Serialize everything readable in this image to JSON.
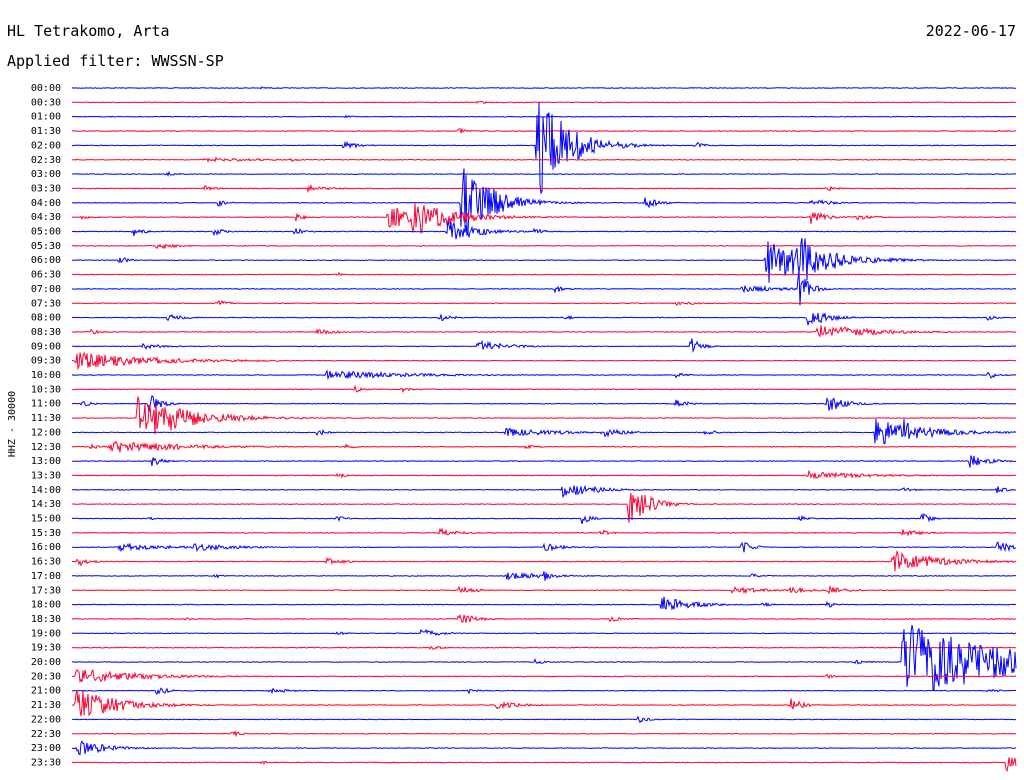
{
  "header": {
    "station": "HL Tetrakomo, Arta",
    "filter": "Applied filter: WWSSN-SP",
    "date": "2022-06-17"
  },
  "chart_data": {
    "type": "line",
    "title": "HL Tetrakomo, Arta",
    "subtitle": "Applied filter: WWSSN-SP",
    "date": "2022-06-17",
    "ylabel": "HHZ - 30000",
    "trace_colors": [
      "#0000ff",
      "#ff0033"
    ],
    "rows": [
      {
        "time": "00:00",
        "events": [
          {
            "at": 0.2,
            "amp": 0.2,
            "dur": 0.01
          }
        ]
      },
      {
        "time": "00:30",
        "events": [
          {
            "at": 0.43,
            "amp": 0.3,
            "dur": 0.01
          }
        ]
      },
      {
        "time": "01:00",
        "events": [
          {
            "at": 0.29,
            "amp": 0.2,
            "dur": 0.01
          }
        ]
      },
      {
        "time": "01:30",
        "events": [
          {
            "at": 0.41,
            "amp": 0.4,
            "dur": 0.01
          }
        ]
      },
      {
        "time": "02:00",
        "events": [
          {
            "at": 0.288,
            "amp": 0.6,
            "dur": 0.015
          },
          {
            "at": 0.493,
            "amp": 8.0,
            "dur": 0.03
          },
          {
            "at": 0.66,
            "amp": 0.6,
            "dur": 0.01
          }
        ]
      },
      {
        "time": "02:30",
        "events": [
          {
            "at": 0.14,
            "amp": 0.4,
            "dur": 0.05
          },
          {
            "at": 0.23,
            "amp": 0.3,
            "dur": 0.01
          }
        ]
      },
      {
        "time": "03:00",
        "events": [
          {
            "at": 0.1,
            "amp": 0.4,
            "dur": 0.01
          }
        ]
      },
      {
        "time": "03:30",
        "events": [
          {
            "at": 0.14,
            "amp": 0.5,
            "dur": 0.01
          },
          {
            "at": 0.25,
            "amp": 0.5,
            "dur": 0.02
          },
          {
            "at": 0.8,
            "amp": 0.4,
            "dur": 0.01
          }
        ]
      },
      {
        "time": "04:00",
        "events": [
          {
            "at": 0.155,
            "amp": 0.5,
            "dur": 0.01
          },
          {
            "at": 0.413,
            "amp": 6.0,
            "dur": 0.03
          },
          {
            "at": 0.446,
            "amp": 1.8,
            "dur": 0.02
          },
          {
            "at": 0.607,
            "amp": 0.8,
            "dur": 0.015
          },
          {
            "at": 0.783,
            "amp": 0.6,
            "dur": 0.02
          }
        ]
      },
      {
        "time": "04:30",
        "events": [
          {
            "at": 0.01,
            "amp": 0.3,
            "dur": 0.01
          },
          {
            "at": 0.237,
            "amp": 0.6,
            "dur": 0.01
          },
          {
            "at": 0.335,
            "amp": 1.5,
            "dur": 0.06
          },
          {
            "at": 0.36,
            "amp": 2.8,
            "dur": 0.04
          },
          {
            "at": 0.783,
            "amp": 1.0,
            "dur": 0.015
          },
          {
            "at": 0.83,
            "amp": 0.4,
            "dur": 0.02
          }
        ]
      },
      {
        "time": "05:00",
        "events": [
          {
            "at": 0.065,
            "amp": 0.7,
            "dur": 0.01
          },
          {
            "at": 0.15,
            "amp": 0.6,
            "dur": 0.01
          },
          {
            "at": 0.236,
            "amp": 0.6,
            "dur": 0.01
          },
          {
            "at": 0.398,
            "amp": 1.6,
            "dur": 0.03
          },
          {
            "at": 0.49,
            "amp": 0.5,
            "dur": 0.01
          }
        ]
      },
      {
        "time": "05:30",
        "events": [
          {
            "at": 0.09,
            "amp": 0.5,
            "dur": 0.02
          }
        ]
      },
      {
        "time": "06:00",
        "events": [
          {
            "at": 0.05,
            "amp": 0.6,
            "dur": 0.01
          },
          {
            "at": 0.736,
            "amp": 3.5,
            "dur": 0.05
          },
          {
            "at": 0.771,
            "amp": 4.0,
            "dur": 0.03
          },
          {
            "at": 0.866,
            "amp": 0.5,
            "dur": 0.01
          }
        ]
      },
      {
        "time": "06:30",
        "events": [
          {
            "at": 0.28,
            "amp": 0.3,
            "dur": 0.01
          }
        ]
      },
      {
        "time": "07:00",
        "events": [
          {
            "at": 0.512,
            "amp": 0.6,
            "dur": 0.01
          },
          {
            "at": 0.71,
            "amp": 0.6,
            "dur": 0.04
          },
          {
            "at": 0.77,
            "amp": 3.0,
            "dur": 0.01
          }
        ]
      },
      {
        "time": "07:30",
        "events": [
          {
            "at": 0.154,
            "amp": 0.6,
            "dur": 0.01
          },
          {
            "at": 0.64,
            "amp": 0.4,
            "dur": 0.02
          }
        ]
      },
      {
        "time": "08:00",
        "events": [
          {
            "at": 0.1,
            "amp": 0.5,
            "dur": 0.02
          },
          {
            "at": 0.39,
            "amp": 0.5,
            "dur": 0.015
          },
          {
            "at": 0.52,
            "amp": 0.4,
            "dur": 0.01
          },
          {
            "at": 0.78,
            "amp": 1.5,
            "dur": 0.02
          },
          {
            "at": 0.97,
            "amp": 0.4,
            "dur": 0.01
          }
        ]
      },
      {
        "time": "08:30",
        "events": [
          {
            "at": 0.02,
            "amp": 0.4,
            "dur": 0.01
          },
          {
            "at": 0.26,
            "amp": 0.7,
            "dur": 0.015
          },
          {
            "at": 0.79,
            "amp": 1.2,
            "dur": 0.05
          }
        ]
      },
      {
        "time": "09:00",
        "events": [
          {
            "at": 0.075,
            "amp": 0.5,
            "dur": 0.02
          },
          {
            "at": 0.43,
            "amp": 0.8,
            "dur": 0.03
          },
          {
            "at": 0.655,
            "amp": 1.4,
            "dur": 0.01
          }
        ]
      },
      {
        "time": "09:30",
        "events": [
          {
            "at": 0.005,
            "amp": 1.2,
            "dur": 0.08
          },
          {
            "at": 0.08,
            "amp": 0.3,
            "dur": 0.01
          }
        ]
      },
      {
        "time": "10:00",
        "events": [
          {
            "at": 0.27,
            "amp": 0.7,
            "dur": 0.08
          },
          {
            "at": 0.64,
            "amp": 0.4,
            "dur": 0.01
          },
          {
            "at": 0.97,
            "amp": 0.6,
            "dur": 0.01
          }
        ]
      },
      {
        "time": "10:30",
        "events": [
          {
            "at": 0.3,
            "amp": 0.6,
            "dur": 0.01
          },
          {
            "at": 0.35,
            "amp": 0.4,
            "dur": 0.01
          }
        ]
      },
      {
        "time": "11:00",
        "events": [
          {
            "at": 0.01,
            "amp": 0.5,
            "dur": 0.01
          },
          {
            "at": 0.082,
            "amp": 2.0,
            "dur": 0.01
          },
          {
            "at": 0.64,
            "amp": 0.8,
            "dur": 0.01
          },
          {
            "at": 0.8,
            "amp": 1.2,
            "dur": 0.02
          }
        ]
      },
      {
        "time": "11:30",
        "events": [
          {
            "at": 0.07,
            "amp": 3.5,
            "dur": 0.05
          }
        ]
      },
      {
        "time": "12:00",
        "events": [
          {
            "at": 0.26,
            "amp": 0.5,
            "dur": 0.01
          },
          {
            "at": 0.46,
            "amp": 0.6,
            "dur": 0.06
          },
          {
            "at": 0.56,
            "amp": 0.8,
            "dur": 0.02
          },
          {
            "at": 0.67,
            "amp": 0.6,
            "dur": 0.01
          },
          {
            "at": 0.85,
            "amp": 2.0,
            "dur": 0.05
          },
          {
            "at": 0.88,
            "amp": 3.0,
            "dur": 0.01
          }
        ]
      },
      {
        "time": "12:30",
        "events": [
          {
            "at": 0.02,
            "amp": 0.5,
            "dur": 0.01
          },
          {
            "at": 0.04,
            "amp": 1.0,
            "dur": 0.07
          },
          {
            "at": 0.29,
            "amp": 0.4,
            "dur": 0.01
          },
          {
            "at": 0.48,
            "amp": 0.4,
            "dur": 0.01
          }
        ]
      },
      {
        "time": "13:00",
        "events": [
          {
            "at": 0.085,
            "amp": 0.8,
            "dur": 0.01
          },
          {
            "at": 0.95,
            "amp": 1.0,
            "dur": 0.02
          }
        ]
      },
      {
        "time": "13:30",
        "events": [
          {
            "at": 0.28,
            "amp": 0.5,
            "dur": 0.01
          },
          {
            "at": 0.78,
            "amp": 0.6,
            "dur": 0.06
          }
        ]
      },
      {
        "time": "14:00",
        "events": [
          {
            "at": 0.52,
            "amp": 1.2,
            "dur": 0.03
          },
          {
            "at": 0.88,
            "amp": 0.5,
            "dur": 0.01
          },
          {
            "at": 0.98,
            "amp": 0.5,
            "dur": 0.01
          }
        ]
      },
      {
        "time": "14:30",
        "events": [
          {
            "at": 0.59,
            "amp": 3.0,
            "dur": 0.02
          }
        ]
      },
      {
        "time": "15:00",
        "events": [
          {
            "at": 0.08,
            "amp": 0.3,
            "dur": 0.01
          },
          {
            "at": 0.28,
            "amp": 0.4,
            "dur": 0.01
          },
          {
            "at": 0.54,
            "amp": 0.8,
            "dur": 0.01
          },
          {
            "at": 0.77,
            "amp": 0.4,
            "dur": 0.01
          },
          {
            "at": 0.9,
            "amp": 0.8,
            "dur": 0.01
          }
        ]
      },
      {
        "time": "15:30",
        "events": [
          {
            "at": 0.39,
            "amp": 0.6,
            "dur": 0.02
          },
          {
            "at": 0.56,
            "amp": 0.5,
            "dur": 0.01
          },
          {
            "at": 0.88,
            "amp": 0.5,
            "dur": 0.02
          }
        ]
      },
      {
        "time": "16:00",
        "events": [
          {
            "at": 0.05,
            "amp": 0.5,
            "dur": 0.06
          },
          {
            "at": 0.13,
            "amp": 0.6,
            "dur": 0.04
          },
          {
            "at": 0.5,
            "amp": 0.6,
            "dur": 0.02
          },
          {
            "at": 0.71,
            "amp": 1.0,
            "dur": 0.01
          },
          {
            "at": 0.98,
            "amp": 0.8,
            "dur": 0.02
          }
        ]
      },
      {
        "time": "16:30",
        "events": [
          {
            "at": 0.005,
            "amp": 1.0,
            "dur": 0.01
          },
          {
            "at": 0.27,
            "amp": 0.5,
            "dur": 0.02
          },
          {
            "at": 0.87,
            "amp": 1.5,
            "dur": 0.05
          }
        ]
      },
      {
        "time": "17:00",
        "events": [
          {
            "at": 0.15,
            "amp": 0.4,
            "dur": 0.01
          },
          {
            "at": 0.46,
            "amp": 0.6,
            "dur": 0.04
          },
          {
            "at": 0.5,
            "amp": 0.8,
            "dur": 0.01
          },
          {
            "at": 0.72,
            "amp": 0.4,
            "dur": 0.01
          }
        ]
      },
      {
        "time": "17:30",
        "events": [
          {
            "at": 0.41,
            "amp": 0.5,
            "dur": 0.02
          },
          {
            "at": 0.7,
            "amp": 0.6,
            "dur": 0.03
          },
          {
            "at": 0.76,
            "amp": 0.6,
            "dur": 0.02
          },
          {
            "at": 0.8,
            "amp": 0.6,
            "dur": 0.02
          }
        ]
      },
      {
        "time": "18:00",
        "events": [
          {
            "at": 0.625,
            "amp": 1.2,
            "dur": 0.03
          },
          {
            "at": 0.73,
            "amp": 0.4,
            "dur": 0.01
          },
          {
            "at": 0.8,
            "amp": 0.5,
            "dur": 0.01
          }
        ]
      },
      {
        "time": "18:30",
        "events": [
          {
            "at": 0.12,
            "amp": 0.3,
            "dur": 0.01
          },
          {
            "at": 0.41,
            "amp": 0.8,
            "dur": 0.02
          },
          {
            "at": 0.57,
            "amp": 0.4,
            "dur": 0.02
          }
        ]
      },
      {
        "time": "19:00",
        "events": [
          {
            "at": 0.28,
            "amp": 0.3,
            "dur": 0.01
          },
          {
            "at": 0.37,
            "amp": 0.6,
            "dur": 0.02
          }
        ]
      },
      {
        "time": "19:30",
        "events": [
          {
            "at": 0.38,
            "amp": 0.4,
            "dur": 0.01
          }
        ]
      },
      {
        "time": "20:00",
        "events": [
          {
            "at": 0.49,
            "amp": 0.4,
            "dur": 0.01
          },
          {
            "at": 0.83,
            "amp": 0.5,
            "dur": 0.01
          },
          {
            "at": 0.88,
            "amp": 6.0,
            "dur": 0.1
          }
        ]
      },
      {
        "time": "20:30",
        "events": [
          {
            "at": 0.005,
            "amp": 1.2,
            "dur": 0.06
          },
          {
            "at": 0.8,
            "amp": 0.3,
            "dur": 0.01
          }
        ]
      },
      {
        "time": "21:00",
        "events": [
          {
            "at": 0.09,
            "amp": 0.8,
            "dur": 0.01
          },
          {
            "at": 0.21,
            "amp": 0.4,
            "dur": 0.02
          },
          {
            "at": 0.42,
            "amp": 0.4,
            "dur": 0.01
          },
          {
            "at": 0.97,
            "amp": 0.5,
            "dur": 0.01
          }
        ]
      },
      {
        "time": "21:30",
        "events": [
          {
            "at": 0.005,
            "amp": 2.5,
            "dur": 0.04
          },
          {
            "at": 0.45,
            "amp": 0.5,
            "dur": 0.03
          },
          {
            "at": 0.76,
            "amp": 1.5,
            "dur": 0.01
          }
        ]
      },
      {
        "time": "22:00",
        "events": [
          {
            "at": 0.6,
            "amp": 0.5,
            "dur": 0.01
          }
        ]
      },
      {
        "time": "22:30",
        "events": [
          {
            "at": 0.17,
            "amp": 0.5,
            "dur": 0.01
          }
        ]
      },
      {
        "time": "23:00",
        "events": [
          {
            "at": 0.005,
            "amp": 1.2,
            "dur": 0.03
          }
        ]
      },
      {
        "time": "23:30",
        "events": [
          {
            "at": 0.2,
            "amp": 0.3,
            "dur": 0.01
          },
          {
            "at": 0.99,
            "amp": 1.5,
            "dur": 0.01
          }
        ]
      }
    ]
  }
}
